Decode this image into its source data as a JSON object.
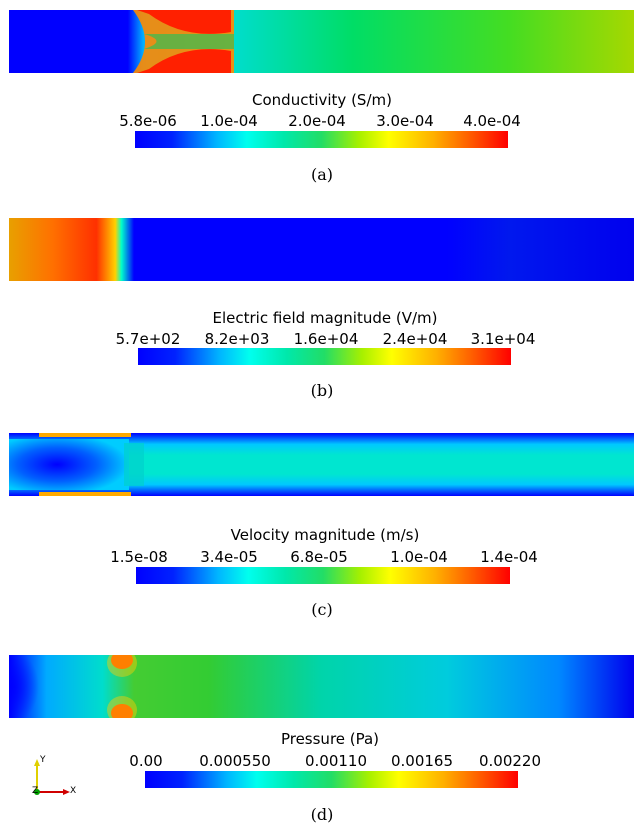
{
  "panels": [
    {
      "id": "a",
      "title": "Conductivity (S/m)",
      "ticks": [
        "5.8e-06",
        "1.0e-04",
        "2.0e-04",
        "3.0e-04",
        "4.0e-04"
      ],
      "caption": "(a)"
    },
    {
      "id": "b",
      "title": "Electric field magnitude (V/m)",
      "ticks": [
        "5.7e+02",
        "8.2e+03",
        "1.6e+04",
        "2.4e+04",
        "3.1e+04"
      ],
      "caption": "(b)"
    },
    {
      "id": "c",
      "title": "Velocity magnitude (m/s)",
      "ticks": [
        "1.5e-08",
        "3.4e-05",
        "6.8e-05",
        "1.0e-04",
        "1.4e-04"
      ],
      "caption": "(c)"
    },
    {
      "id": "d",
      "title": "Pressure (Pa)",
      "ticks": [
        "0.00",
        "0.000550",
        "0.00110",
        "0.00165",
        "0.00220"
      ],
      "caption": "(d)"
    }
  ],
  "axes_triad": {
    "y": "Y",
    "x": "X",
    "z": "Z"
  },
  "colors": {
    "low": "#0000ff",
    "mid": "#00ff99",
    "high": "#ff0000"
  }
}
